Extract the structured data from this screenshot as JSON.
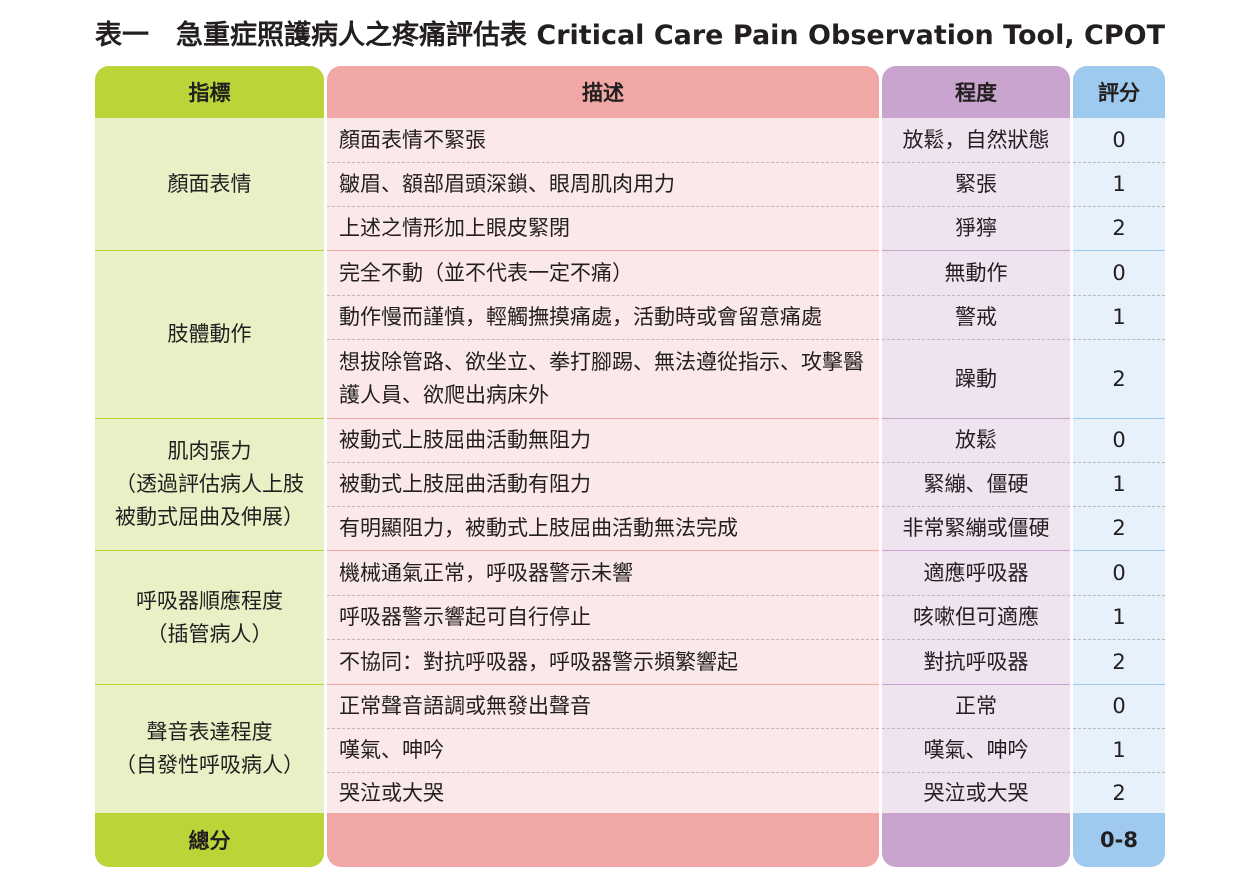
{
  "title": "表一　急重症照護病人之疼痛評估表 Critical Care Pain Observation Tool, CPOT",
  "headers": {
    "indicator": "指標",
    "description": "描述",
    "degree": "程度",
    "score": "評分"
  },
  "groups": [
    {
      "indicator": "顏面表情"
    },
    {
      "indicator": "肢體動作"
    },
    {
      "indicator": "肌肉張力\n（透過評估病人上肢\n被動式屈曲及伸展）"
    },
    {
      "indicator": "呼吸器順應程度\n（插管病人）"
    },
    {
      "indicator": "聲音表達程度\n（自發性呼吸病人）"
    }
  ],
  "rows": [
    {
      "description": "顏面表情不緊張",
      "degree": "放鬆，自然狀態",
      "score": "0"
    },
    {
      "description": "皺眉、額部眉頭深鎖、眼周肌肉用力",
      "degree": "緊張",
      "score": "1"
    },
    {
      "description": "上述之情形加上眼皮緊閉",
      "degree": "猙獰",
      "score": "2"
    },
    {
      "description": "完全不動（並不代表一定不痛）",
      "degree": "無動作",
      "score": "0"
    },
    {
      "description": "動作慢而謹慎，輕觸撫摸痛處，活動時或會留意痛處",
      "degree": "警戒",
      "score": "1"
    },
    {
      "description": "想拔除管路、欲坐立、拳打腳踢、無法遵從指示、攻擊醫護人員、欲爬出病床外",
      "degree": "躁動",
      "score": "2"
    },
    {
      "description": "被動式上肢屈曲活動無阻力",
      "degree": "放鬆",
      "score": "0"
    },
    {
      "description": "被動式上肢屈曲活動有阻力",
      "degree": "緊繃、僵硬",
      "score": "1"
    },
    {
      "description": "有明顯阻力，被動式上肢屈曲活動無法完成",
      "degree": "非常緊繃或僵硬",
      "score": "2"
    },
    {
      "description": "機械通氣正常，呼吸器警示未響",
      "degree": "適應呼吸器",
      "score": "0"
    },
    {
      "description": "呼吸器警示響起可自行停止",
      "degree": "咳嗽但可適應",
      "score": "1"
    },
    {
      "description": "不協同：對抗呼吸器，呼吸器警示頻繁響起",
      "degree": "對抗呼吸器",
      "score": "2"
    },
    {
      "description": "正常聲音語調或無發出聲音",
      "degree": "正常",
      "score": "0"
    },
    {
      "description": "嘆氣、呻吟",
      "degree": "嘆氣、呻吟",
      "score": "1"
    },
    {
      "description": "哭泣或大哭",
      "degree": "哭泣或大哭",
      "score": "2"
    }
  ],
  "footer": {
    "indicator": "總分",
    "description": "",
    "degree": "",
    "score": "0-8"
  },
  "colors": {
    "indicator_header": "#bad537",
    "indicator_body": "#e8f0c6",
    "description_header": "#f0a7a6",
    "description_body": "#fbe9ea",
    "degree_header": "#c9a4cf",
    "degree_body": "#efe3f0",
    "score_header": "#9fcaf0",
    "score_body": "#e6f1fb"
  }
}
